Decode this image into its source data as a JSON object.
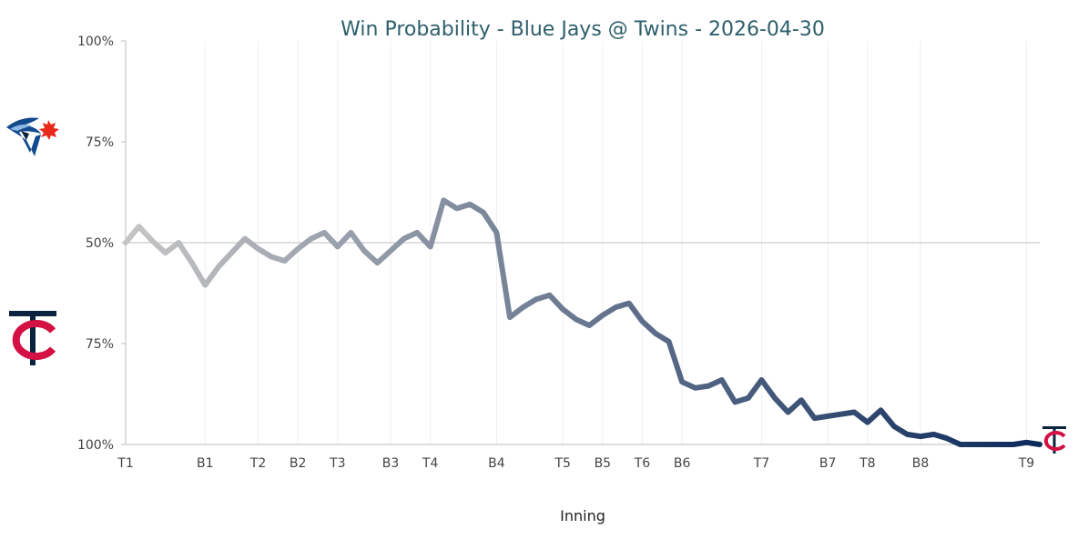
{
  "chart_data": {
    "type": "line",
    "title": "Win Probability - Blue Jays @ Twins - 2026-04-30",
    "xlabel": "Inning",
    "ylabel": "",
    "y_tick_labels": [
      "100%",
      "75%",
      "50%",
      "75%",
      "100%"
    ],
    "ylim": [
      -100,
      100
    ],
    "xlim": [
      0,
      69
    ],
    "x_ticks": [
      {
        "label": "T1",
        "x": 0
      },
      {
        "label": "B1",
        "x": 6
      },
      {
        "label": "T2",
        "x": 10
      },
      {
        "label": "B2",
        "x": 13
      },
      {
        "label": "T3",
        "x": 16
      },
      {
        "label": "B3",
        "x": 20
      },
      {
        "label": "T4",
        "x": 23
      },
      {
        "label": "B4",
        "x": 28
      },
      {
        "label": "T5",
        "x": 33
      },
      {
        "label": "B5",
        "x": 36
      },
      {
        "label": "T6",
        "x": 39
      },
      {
        "label": "B6",
        "x": 42
      },
      {
        "label": "T7",
        "x": 48
      },
      {
        "label": "B7",
        "x": 53
      },
      {
        "label": "T8",
        "x": 56
      },
      {
        "label": "B8",
        "x": 60
      },
      {
        "label": "T9",
        "x": 68
      }
    ],
    "grid": true,
    "series": [
      {
        "values": [
          0,
          8,
          1,
          -5,
          0,
          -10,
          -21,
          -12,
          -5,
          2,
          -3,
          -7,
          -9,
          -3,
          2,
          5,
          -2,
          5,
          -4,
          -10,
          -4,
          2,
          5,
          -2,
          21,
          17,
          19,
          15,
          5,
          -37,
          -32,
          -28,
          -26,
          -33,
          -38,
          -41,
          -36,
          -32,
          -30,
          -39,
          -45,
          -49,
          -69,
          -72,
          -71,
          -68,
          -79,
          -77,
          -68,
          -77,
          -84,
          -78,
          -87,
          -86,
          -85,
          -84,
          -89,
          -83,
          -91,
          -95,
          -96,
          -95,
          -97,
          -100,
          -100,
          -100,
          -100,
          -100,
          -99,
          -100
        ]
      }
    ],
    "team_logos": {
      "top": "blue-jays-logo",
      "bottom": "twins-logo",
      "end": "twins-logo"
    },
    "colors": {
      "line_start": "#c4c4c4",
      "line_end": "#0d2b5b",
      "title": "#2e5f6b",
      "jays_blue": "#134a8e",
      "twins_navy": "#0c2340",
      "twins_red": "#d31145"
    }
  }
}
